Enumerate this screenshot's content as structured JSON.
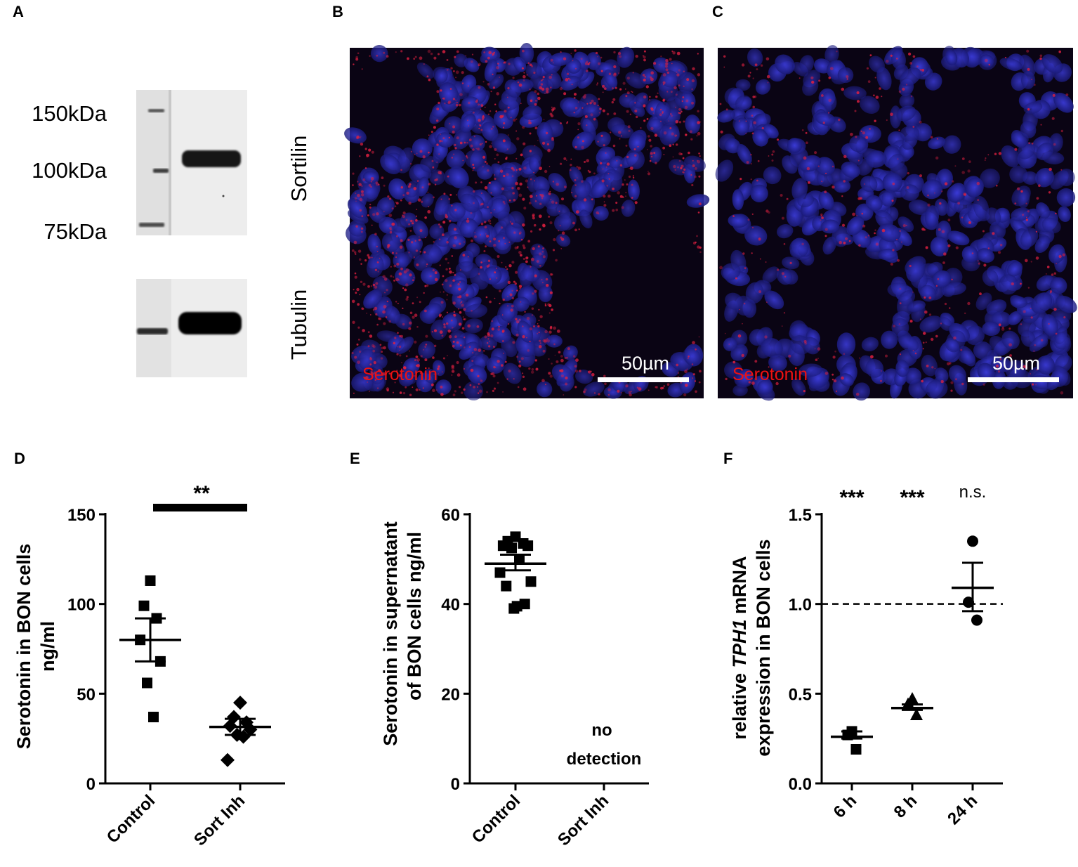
{
  "panels": {
    "A": {
      "label": "A",
      "markers": [
        "150kDa",
        "100kDa",
        "75kDa"
      ],
      "blot_labels": [
        "Sortilin",
        "Tubulin"
      ]
    },
    "B": {
      "label": "B",
      "stain": "Serotonin",
      "scale": "50µm"
    },
    "C": {
      "label": "C",
      "stain": "Serotonin",
      "scale": "50µm"
    },
    "D": {
      "label": "D"
    },
    "E": {
      "label": "E"
    },
    "F": {
      "label": "F"
    }
  },
  "chart_data": [
    {
      "id": "D",
      "type": "scatter",
      "ylabel": [
        "Serotonin in BON cells",
        "ng/ml"
      ],
      "categories": [
        "Control",
        "Sort Inh"
      ],
      "ylim": [
        0,
        150
      ],
      "yticks": [
        0,
        50,
        100,
        150
      ],
      "series": [
        {
          "category": "Control",
          "marker": "square",
          "values": [
            113,
            99,
            92,
            80,
            68,
            56,
            37
          ],
          "mean": 80,
          "sem_low": 68,
          "sem_high": 92
        },
        {
          "category": "Sort Inh",
          "marker": "diamond",
          "values": [
            45,
            37,
            34,
            32,
            30,
            27,
            26,
            13
          ],
          "mean": 31.5,
          "sem_low": 27,
          "sem_high": 36
        }
      ],
      "significance": {
        "text": "**",
        "between": [
          "Control",
          "Sort Inh"
        ]
      }
    },
    {
      "id": "E",
      "type": "scatter",
      "ylabel": [
        "Serotonin in supernatant",
        "of BON cells ng/ml"
      ],
      "categories": [
        "Control",
        "Sort Inh"
      ],
      "ylim": [
        0,
        60
      ],
      "yticks": [
        0,
        20,
        40,
        60
      ],
      "series": [
        {
          "category": "Control",
          "marker": "square",
          "values": [
            55,
            54,
            53.5,
            53,
            53,
            52.5,
            50,
            47,
            45,
            44,
            40,
            39.5,
            39
          ],
          "mean": 49,
          "sem_low": 47.5,
          "sem_high": 51
        }
      ],
      "annotation": [
        "no",
        "detection"
      ]
    },
    {
      "id": "F",
      "type": "scatter",
      "ylabel_parts": [
        "relative ",
        "TPH1",
        " mRNA"
      ],
      "ylabel2": "expression in BON cells",
      "categories": [
        "6 h",
        "8 h",
        "24 h"
      ],
      "ylim": [
        0,
        1.5
      ],
      "yticks": [
        "0.0",
        "0.5",
        "1.0",
        "1.5"
      ],
      "reference_line": 1.0,
      "series": [
        {
          "category": "6 h",
          "marker": "square",
          "values": [
            0.29,
            0.27,
            0.19
          ],
          "mean": 0.26,
          "sem_low": 0.25,
          "sem_high": 0.29
        },
        {
          "category": "8 h",
          "marker": "triangle",
          "values": [
            0.47,
            0.44,
            0.38
          ],
          "mean": 0.42,
          "sem_low": 0.41,
          "sem_high": 0.44
        },
        {
          "category": "24 h",
          "marker": "circle",
          "values": [
            1.35,
            1.01,
            0.91
          ],
          "mean": 1.09,
          "sem_low": 0.96,
          "sem_high": 1.23
        }
      ],
      "significance": [
        "***",
        "***",
        "n.s."
      ]
    }
  ]
}
